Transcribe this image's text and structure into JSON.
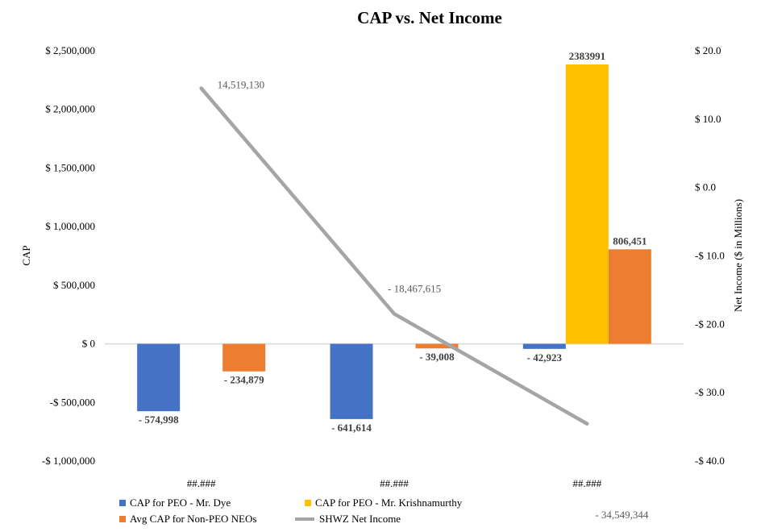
{
  "chart_data": {
    "type": "bar",
    "title": "CAP vs. Net Income",
    "categories": [
      "##.###",
      "##.###",
      "##.###"
    ],
    "ylabel": "CAP",
    "y2label": "Net Income ($ in Millions)",
    "ylim": [
      -1000000,
      2500000
    ],
    "y2lim": [
      -40,
      20
    ],
    "y_ticks": [
      {
        "value": 2500000,
        "label": "$ 2,500,000"
      },
      {
        "value": 2000000,
        "label": "$ 2,000,000"
      },
      {
        "value": 1500000,
        "label": "$ 1,500,000"
      },
      {
        "value": 1000000,
        "label": "$ 1,000,000"
      },
      {
        "value": 500000,
        "label": "$ 500,000"
      },
      {
        "value": 0,
        "label": "$ 0"
      },
      {
        "value": -500000,
        "label": "-$ 500,000"
      },
      {
        "value": -1000000,
        "label": "-$ 1,000,000"
      }
    ],
    "y2_ticks": [
      {
        "value": 20,
        "label": "$ 20.0"
      },
      {
        "value": 10,
        "label": "$ 10.0"
      },
      {
        "value": 0,
        "label": "$ 0.0"
      },
      {
        "value": -10,
        "label": "-$ 10.0"
      },
      {
        "value": -20,
        "label": "-$ 20.0"
      },
      {
        "value": -30,
        "label": "-$ 30.0"
      },
      {
        "value": -40,
        "label": "-$ 40.0"
      }
    ],
    "series": [
      {
        "name": "CAP for PEO - Mr. Dye",
        "color": "#4472C4",
        "values": [
          -574998,
          -641614,
          -42923
        ],
        "labels": [
          "- 574,998",
          "- 641,614",
          "- 42,923"
        ]
      },
      {
        "name": "CAP for PEO - Mr. Krishnamurthy",
        "color": "#FFC000",
        "values": [
          null,
          null,
          2383991
        ],
        "labels": [
          null,
          null,
          "2383991"
        ]
      },
      {
        "name": "Avg CAP for Non-PEO NEOs",
        "color": "#ED7D31",
        "values": [
          -234879,
          -39008,
          806451
        ],
        "labels": [
          "- 234,879",
          "- 39,008",
          "806,451"
        ]
      }
    ],
    "line_series": {
      "name": "SHWZ Net Income",
      "color": "#A5A5A5",
      "axis": "right",
      "values": [
        14.51913,
        -18.467615,
        -34.549344
      ],
      "labels": [
        "14,519,130",
        "- 18,467,615",
        "- 34,549,344"
      ]
    },
    "legend": {
      "placement": "bottom",
      "order": [
        "CAP for PEO - Mr. Dye",
        "CAP for PEO - Mr. Krishnamurthy",
        "Avg CAP for Non-PEO NEOs",
        "SHWZ Net Income"
      ]
    },
    "grid": false
  }
}
